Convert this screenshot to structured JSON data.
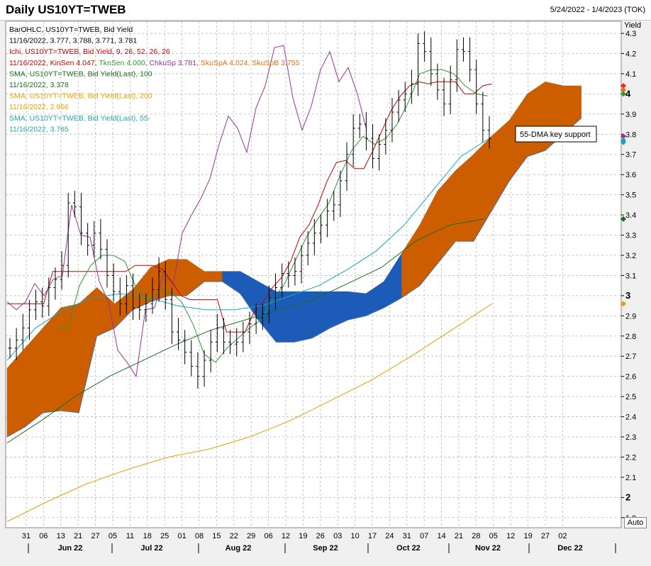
{
  "header": {
    "title": "Daily US10YT=TWEB",
    "date_range": "5/24/2022 - 1/4/2023 (TOK)"
  },
  "axis_label": "Yield",
  "auto_label": "Auto",
  "annotation": "55-DMA key support",
  "legend": [
    {
      "text": "BarOHLC, US10YT=TWEB, Bid Yield",
      "color": "#000000"
    },
    {
      "text": "11/16/2022, 3.777, 3.788, 3.771, 3.781",
      "color": "#000000"
    },
    {
      "text": "Ichi, US10YT=TWEB, Bid Yield,  9, 26, 52, 26, 26",
      "color": "#cc0000"
    },
    {
      "parts": [
        {
          "text": "11/16/2022, KinSen 4.047, ",
          "color": "#cc0000"
        },
        {
          "text": "TknSen 4.000, ",
          "color": "#2e9a2e"
        },
        {
          "text": "ChkuSp 3.781, ",
          "color": "#993399"
        },
        {
          "text": "SkuSpA 4.024, SkuSpB 3.755",
          "color": "#e07010"
        }
      ]
    },
    {
      "text": "SMA, US10YT=TWEB, Bid Yield(Last),  100",
      "color": "#1e6b1e"
    },
    {
      "text": "11/16/2022, 3.378",
      "color": "#1e6b1e"
    },
    {
      "text": "SMA, US10YT=TWEB, Bid Yield(Last),  200",
      "color": "#e8a000"
    },
    {
      "text": "11/16/2022, 2.956",
      "color": "#e8a000"
    },
    {
      "text": "SMA, US10YT=TWEB, Bid Yield(Last),  55-",
      "color": "#1aa6b8"
    },
    {
      "text": "11/16/2022, 3.765",
      "color": "#1aa6b8"
    }
  ],
  "chart_data": {
    "type": "line",
    "title": "Daily US10YT=TWEB",
    "ylabel": "Yield",
    "ylim": [
      1.85,
      4.36
    ],
    "y_ticks": [
      "1.9",
      "2",
      "2.1",
      "2.2",
      "2.3",
      "2.4",
      "2.5",
      "2.6",
      "2.7",
      "2.8",
      "2.9",
      "3",
      "3.1",
      "3.2",
      "3.3",
      "3.4",
      "3.5",
      "3.6",
      "3.7",
      "3.8",
      "3.9",
      "4",
      "4.1",
      "4.2",
      "4.3"
    ],
    "x_day_labels": [
      "31",
      "06",
      "13",
      "21",
      "27",
      "05",
      "11",
      "18",
      "25",
      "01",
      "08",
      "15",
      "22",
      "29",
      "06",
      "12",
      "19",
      "26",
      "03",
      "10",
      "17",
      "24",
      "31",
      "07",
      "14",
      "21",
      "28",
      "05",
      "12",
      "19",
      "27",
      "02"
    ],
    "x_month_labels": [
      "Jun 22",
      "Jul 22",
      "Aug 22",
      "Sep 22",
      "Oct 22",
      "Nov 22",
      "Dec 22"
    ],
    "ohlc_last": {
      "date": "11/16/2022",
      "open": 3.777,
      "high": 3.788,
      "low": 3.771,
      "close": 3.781
    },
    "close_series": [
      2.74,
      2.78,
      2.84,
      2.93,
      2.97,
      2.95,
      3.04,
      3.08,
      3.15,
      3.46,
      3.44,
      3.31,
      3.25,
      3.31,
      3.23,
      3.1,
      3.02,
      2.96,
      3.05,
      2.94,
      2.93,
      2.96,
      3.03,
      3.12,
      2.98,
      2.82,
      2.78,
      2.72,
      2.65,
      2.6,
      2.68,
      2.77,
      2.84,
      2.77,
      2.76,
      2.77,
      2.82,
      2.86,
      2.89,
      2.91,
      2.99,
      3.04,
      3.11,
      3.1,
      3.12,
      3.2,
      3.26,
      3.31,
      3.35,
      3.42,
      3.45,
      3.57,
      3.7,
      3.83,
      3.85,
      3.78,
      3.68,
      3.75,
      3.82,
      3.91,
      3.97,
      4.0,
      4.05,
      4.25,
      4.21,
      4.1,
      4.02,
      3.95,
      4.07,
      4.22,
      4.21,
      4.12,
      3.95,
      3.82,
      3.78
    ],
    "series": [
      {
        "name": "BarOHLC Bid Yield",
        "last": 3.781,
        "color": "#000000"
      },
      {
        "name": "KinSen",
        "last": 4.047,
        "color": "#cc0000",
        "values": [
          2.96,
          2.96,
          2.96,
          2.96,
          2.96,
          3.12,
          3.12,
          3.12,
          3.12,
          3.12,
          3.12,
          3.12,
          3.12,
          3.12,
          3.15,
          3.15,
          3.15,
          3.13,
          3.07,
          3.0,
          2.98,
          2.98,
          2.98,
          2.98,
          2.82,
          2.82,
          2.82,
          2.92,
          2.97,
          3.04,
          3.09,
          3.17,
          3.29,
          3.35,
          3.45,
          3.57,
          3.66,
          3.67,
          3.63,
          3.63,
          3.72,
          3.82,
          3.92,
          3.99,
          4.04,
          4.06,
          4.05,
          4.06,
          4.06,
          4.06,
          4.0,
          4.0,
          4.04,
          4.05
        ]
      },
      {
        "name": "TknSen",
        "last": 4.0,
        "color": "#2e9a2e",
        "values": [
          2.84,
          2.84,
          3.05,
          3.15,
          3.2,
          3.2,
          3.17,
          3.04,
          2.97,
          3.02,
          3.02,
          2.97,
          2.86,
          2.71,
          2.67,
          2.74,
          2.79,
          2.84,
          2.88,
          2.98,
          3.05,
          3.17,
          3.29,
          3.38,
          3.46,
          3.6,
          3.72,
          3.79,
          3.75,
          3.78,
          3.85,
          3.96,
          4.1,
          4.12,
          4.12,
          4.1,
          4.04,
          4.0,
          3.99
        ]
      },
      {
        "name": "ChkuSp",
        "last": 3.781,
        "color": "#993399",
        "values": [
          2.97,
          2.93,
          2.97,
          3.06,
          3.0,
          3.08,
          3.1,
          3.45,
          3.3,
          3.29,
          3.07,
          2.97,
          2.73,
          2.67,
          2.6,
          2.93,
          2.94,
          3.12,
          3.05,
          3.31,
          3.4,
          3.48,
          3.58,
          3.75,
          3.89,
          3.83,
          3.71,
          3.93,
          4.04,
          4.23,
          4.24,
          3.98,
          3.82,
          3.94,
          4.12,
          4.21,
          4.06,
          4.13,
          4.0,
          3.82
        ]
      },
      {
        "name": "SkuSpA",
        "last": 4.024,
        "color": "#e07010"
      },
      {
        "name": "SkuSpB",
        "last": 3.755,
        "color": "#e07010"
      },
      {
        "name": "SMA 100",
        "last": 3.378,
        "color": "#1e6b1e",
        "values": [
          2.27,
          2.38,
          2.5,
          2.6,
          2.68,
          2.76,
          2.83,
          2.88,
          2.93,
          2.98,
          3.06,
          3.14,
          3.27,
          3.35,
          3.38
        ]
      },
      {
        "name": "SMA 200",
        "last": 2.956,
        "color": "#e8a000",
        "values": [
          1.88,
          1.98,
          2.07,
          2.14,
          2.2,
          2.24,
          2.3,
          2.38,
          2.48,
          2.58,
          2.7,
          2.83,
          2.96
        ]
      },
      {
        "name": "SMA 55",
        "last": 3.765,
        "color": "#1aa6b8",
        "values": [
          2.68,
          2.84,
          2.93,
          2.99,
          3.01,
          2.99,
          2.95,
          2.93,
          2.93,
          2.95,
          3.0,
          3.05,
          3.13,
          3.22,
          3.35,
          3.52,
          3.69,
          3.78
        ]
      }
    ],
    "cloud": [
      [
        2.3,
        2.64
      ],
      [
        2.35,
        2.74
      ],
      [
        2.42,
        2.84
      ],
      [
        2.43,
        2.94
      ],
      [
        2.42,
        2.96
      ],
      [
        2.8,
        3.04
      ],
      [
        2.84,
        2.96
      ],
      [
        2.93,
        3.03
      ],
      [
        2.97,
        3.14
      ],
      [
        3.0,
        3.18
      ],
      [
        3.0,
        3.18
      ],
      [
        3.07,
        3.12
      ],
      [
        3.07,
        3.12
      ],
      [
        3.01,
        3.12
      ],
      [
        2.88,
        3.07
      ],
      [
        2.77,
        3.02
      ],
      [
        2.77,
        3.02
      ],
      [
        2.79,
        3.02
      ],
      [
        2.84,
        3.02
      ],
      [
        2.88,
        3.02
      ],
      [
        2.9,
        3.01
      ],
      [
        2.94,
        3.07
      ],
      [
        2.99,
        3.21
      ],
      [
        3.05,
        3.35
      ],
      [
        3.16,
        3.52
      ],
      [
        3.27,
        3.62
      ],
      [
        3.27,
        3.7
      ],
      [
        3.42,
        3.79
      ],
      [
        3.57,
        3.87
      ],
      [
        3.69,
        4.0
      ],
      [
        3.72,
        4.06
      ],
      [
        3.8,
        4.04
      ],
      [
        3.88,
        4.04
      ]
    ],
    "right_markers": [
      4.04,
      4.02,
      4.0,
      3.79,
      3.77,
      3.76,
      3.38,
      2.96
    ]
  }
}
